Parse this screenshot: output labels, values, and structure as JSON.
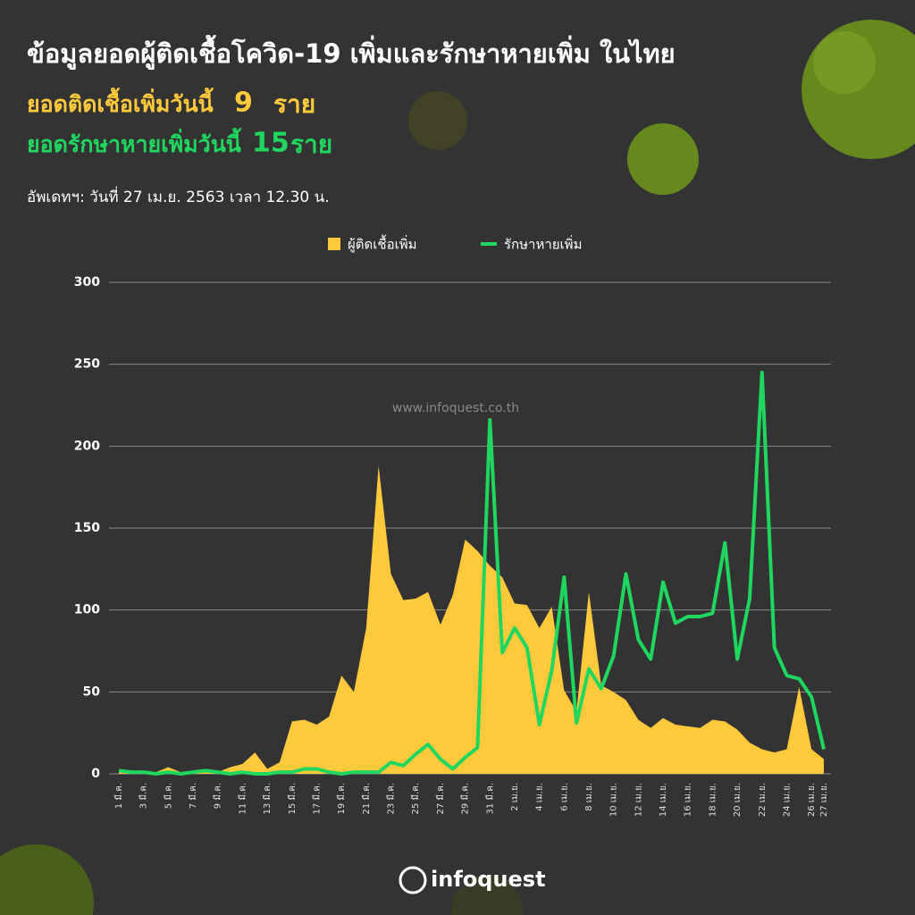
{
  "header": {
    "title": "ข้อมูลยอดผู้ติดเชื้อโควิด-19 เพิ่มและรักษาหายเพิ่ม ในไทย",
    "infected_today_label": "ยอดติดเชื้อเพิ่มวันนี้",
    "infected_today": 9,
    "infected_unit": "ราย",
    "recovered_today_label": "ยอดรักษาหายเพิ่มวันนี้",
    "recovered_today": 15,
    "recovered_unit": "ราย",
    "updated": "อัพเดทฯ: วันที่ 27 เม.ย. 2563 เวลา 12.30 น.",
    "watermark": "www.infoquest.co.th",
    "logo": "infoquest"
  },
  "chart_data": {
    "type": "combo",
    "categories": [
      "1 มี.ค.",
      null,
      "3 มี.ค.",
      null,
      "5 มี.ค.",
      null,
      "7 มี.ค.",
      null,
      "9 มี.ค.",
      null,
      "11 มี.ค.",
      null,
      "13 มี.ค.",
      null,
      "15 มี.ค.",
      null,
      "17 มี.ค.",
      null,
      "19 มี.ค.",
      null,
      "21 มี.ค.",
      null,
      "23 มี.ค.",
      null,
      "25 มี.ค.",
      null,
      "27 มี.ค.",
      null,
      "29 มี.ค.",
      null,
      "31 มี.ค.",
      null,
      "2 เม.ย.",
      null,
      "4 เม.ย.",
      null,
      "6 เม.ย.",
      null,
      "8 เม.ย.",
      null,
      "10 เม.ย.",
      null,
      "12 เม.ย.",
      null,
      "14 เม.ย.",
      null,
      "16 เม.ย.",
      null,
      "18 เม.ย.",
      null,
      "20 เม.ย.",
      null,
      "22 เม.ย.",
      null,
      "24 เม.ย.",
      null,
      "26 เม.ย.",
      "27 เม.ย."
    ],
    "series": [
      {
        "name": "ผู้ติดเชื้อเพิ่ม",
        "type": "area",
        "color": "#ffc93c",
        "values": [
          1,
          1,
          0,
          1,
          4,
          1,
          2,
          1,
          1,
          4,
          6,
          13,
          3,
          7,
          32,
          33,
          30,
          35,
          60,
          50,
          89,
          188,
          122,
          106,
          107,
          111,
          91,
          109,
          143,
          136,
          127,
          120,
          104,
          103,
          89,
          102,
          51,
          38,
          111,
          54,
          50,
          45,
          33,
          28,
          34,
          30,
          29,
          28,
          33,
          32,
          27,
          19,
          15,
          13,
          15,
          53,
          15,
          9
        ]
      },
      {
        "name": "รักษาหายเพิ่ม",
        "type": "line",
        "color": "#1fd65f",
        "values": [
          2,
          1,
          1,
          0,
          1,
          0,
          1,
          2,
          1,
          0,
          1,
          0,
          0,
          1,
          1,
          3,
          3,
          1,
          0,
          1,
          1,
          1,
          7,
          5,
          12,
          18,
          9,
          3,
          10,
          16,
          216,
          74,
          89,
          77,
          30,
          63,
          120,
          31,
          64,
          52,
          72,
          122,
          82,
          70,
          117,
          92,
          96,
          96,
          98,
          141,
          70,
          107,
          245,
          77,
          60,
          58,
          47,
          15
        ]
      }
    ],
    "ylim": [
      0,
      300
    ],
    "yticks": [
      0,
      50,
      100,
      150,
      200,
      250,
      300
    ],
    "grid": true,
    "legend": "top"
  }
}
